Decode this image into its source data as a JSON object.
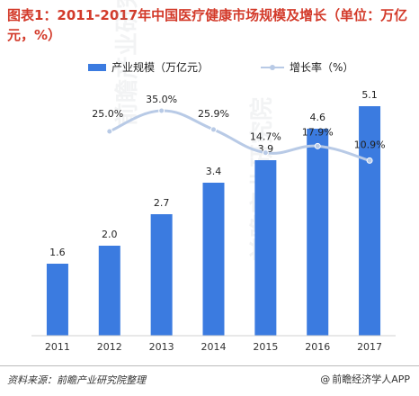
{
  "title": "图表1：2011-2017年中国医疗健康市场规模及增长（单位：万亿元，%）",
  "source": "资料来源：前瞻产业研究院整理",
  "brand": "前瞻经济学人APP",
  "watermark": "前瞻产业研究院",
  "colors": {
    "title": "#d33a2a",
    "bar": "#3b7be0",
    "line": "#b8cae6",
    "marker": "#b8cae6",
    "label": "#222222"
  },
  "chart_data": {
    "type": "bar",
    "categories": [
      "2011",
      "2012",
      "2013",
      "2014",
      "2015",
      "2016",
      "2017"
    ],
    "series": [
      {
        "name": "产业规模（万亿元）",
        "type": "bar",
        "axis": "left",
        "values": [
          1.6,
          2.0,
          2.7,
          3.4,
          3.9,
          4.6,
          5.1
        ],
        "labels": [
          "1.6",
          "2.0",
          "2.7",
          "3.4",
          "3.9",
          "4.6",
          "5.1"
        ]
      },
      {
        "name": "增长率（%）",
        "type": "line",
        "axis": "right",
        "values": [
          null,
          25.0,
          35.0,
          25.9,
          14.7,
          17.9,
          10.9
        ],
        "labels": [
          "",
          "25.0%",
          "35.0%",
          "25.9%",
          "14.7%",
          "17.9%",
          "10.9%"
        ]
      }
    ],
    "ylim_left": [
      0,
      5.5
    ],
    "ylim_right": [
      0,
      45
    ],
    "legend_position": "top-center",
    "grid": false,
    "smooth_line": true
  }
}
